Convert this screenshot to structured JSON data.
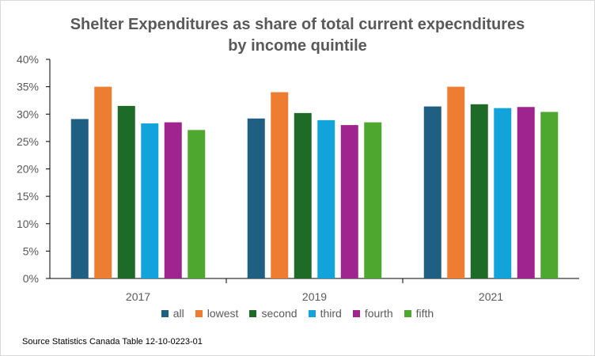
{
  "chart_data": {
    "type": "bar",
    "title_line1": "Shelter Expenditures as share of total current expecnditures",
    "title_line2": "by income quintile",
    "categories": [
      "2017",
      "2019",
      "2021"
    ],
    "series": [
      {
        "name": "all",
        "color": "#1f5f82",
        "values": [
          29.1,
          29.2,
          31.4
        ]
      },
      {
        "name": "lowest",
        "color": "#ed7d31",
        "values": [
          35.0,
          34.0,
          35.0
        ]
      },
      {
        "name": "second",
        "color": "#1e6b27",
        "values": [
          31.5,
          30.2,
          31.8
        ]
      },
      {
        "name": "third",
        "color": "#13a3db",
        "values": [
          28.3,
          28.9,
          31.1
        ]
      },
      {
        "name": "fourth",
        "color": "#a0248f",
        "values": [
          28.5,
          28.0,
          31.3
        ]
      },
      {
        "name": "fifth",
        "color": "#4ea72e",
        "values": [
          27.1,
          28.5,
          30.4
        ]
      }
    ],
    "yticks": [
      "0%",
      "5%",
      "10%",
      "15%",
      "20%",
      "25%",
      "30%",
      "35%",
      "40%"
    ],
    "ylim": [
      0,
      40
    ],
    "grid": false,
    "legend_position": "bottom",
    "source": "Source Statistics Canada Table 12-10-0223-01"
  }
}
